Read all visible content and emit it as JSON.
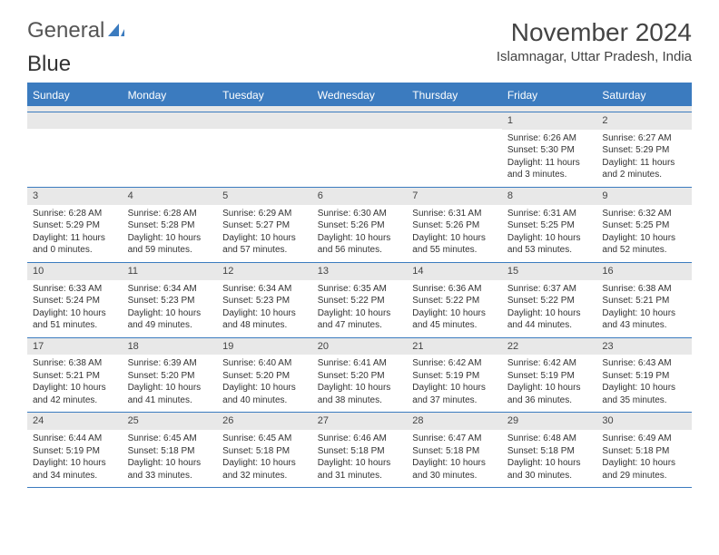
{
  "logo": {
    "text1": "General",
    "text2": "Blue"
  },
  "title": "November 2024",
  "location": "Islamnagar, Uttar Pradesh, India",
  "colors": {
    "brand_blue": "#3b7bbf",
    "header_gray": "#e8e8e8",
    "text": "#333333",
    "bg": "#ffffff"
  },
  "weekdays": [
    "Sunday",
    "Monday",
    "Tuesday",
    "Wednesday",
    "Thursday",
    "Friday",
    "Saturday"
  ],
  "weeks": [
    [
      null,
      null,
      null,
      null,
      null,
      {
        "n": "1",
        "sr": "Sunrise: 6:26 AM",
        "ss": "Sunset: 5:30 PM",
        "dl": "Daylight: 11 hours and 3 minutes."
      },
      {
        "n": "2",
        "sr": "Sunrise: 6:27 AM",
        "ss": "Sunset: 5:29 PM",
        "dl": "Daylight: 11 hours and 2 minutes."
      }
    ],
    [
      {
        "n": "3",
        "sr": "Sunrise: 6:28 AM",
        "ss": "Sunset: 5:29 PM",
        "dl": "Daylight: 11 hours and 0 minutes."
      },
      {
        "n": "4",
        "sr": "Sunrise: 6:28 AM",
        "ss": "Sunset: 5:28 PM",
        "dl": "Daylight: 10 hours and 59 minutes."
      },
      {
        "n": "5",
        "sr": "Sunrise: 6:29 AM",
        "ss": "Sunset: 5:27 PM",
        "dl": "Daylight: 10 hours and 57 minutes."
      },
      {
        "n": "6",
        "sr": "Sunrise: 6:30 AM",
        "ss": "Sunset: 5:26 PM",
        "dl": "Daylight: 10 hours and 56 minutes."
      },
      {
        "n": "7",
        "sr": "Sunrise: 6:31 AM",
        "ss": "Sunset: 5:26 PM",
        "dl": "Daylight: 10 hours and 55 minutes."
      },
      {
        "n": "8",
        "sr": "Sunrise: 6:31 AM",
        "ss": "Sunset: 5:25 PM",
        "dl": "Daylight: 10 hours and 53 minutes."
      },
      {
        "n": "9",
        "sr": "Sunrise: 6:32 AM",
        "ss": "Sunset: 5:25 PM",
        "dl": "Daylight: 10 hours and 52 minutes."
      }
    ],
    [
      {
        "n": "10",
        "sr": "Sunrise: 6:33 AM",
        "ss": "Sunset: 5:24 PM",
        "dl": "Daylight: 10 hours and 51 minutes."
      },
      {
        "n": "11",
        "sr": "Sunrise: 6:34 AM",
        "ss": "Sunset: 5:23 PM",
        "dl": "Daylight: 10 hours and 49 minutes."
      },
      {
        "n": "12",
        "sr": "Sunrise: 6:34 AM",
        "ss": "Sunset: 5:23 PM",
        "dl": "Daylight: 10 hours and 48 minutes."
      },
      {
        "n": "13",
        "sr": "Sunrise: 6:35 AM",
        "ss": "Sunset: 5:22 PM",
        "dl": "Daylight: 10 hours and 47 minutes."
      },
      {
        "n": "14",
        "sr": "Sunrise: 6:36 AM",
        "ss": "Sunset: 5:22 PM",
        "dl": "Daylight: 10 hours and 45 minutes."
      },
      {
        "n": "15",
        "sr": "Sunrise: 6:37 AM",
        "ss": "Sunset: 5:22 PM",
        "dl": "Daylight: 10 hours and 44 minutes."
      },
      {
        "n": "16",
        "sr": "Sunrise: 6:38 AM",
        "ss": "Sunset: 5:21 PM",
        "dl": "Daylight: 10 hours and 43 minutes."
      }
    ],
    [
      {
        "n": "17",
        "sr": "Sunrise: 6:38 AM",
        "ss": "Sunset: 5:21 PM",
        "dl": "Daylight: 10 hours and 42 minutes."
      },
      {
        "n": "18",
        "sr": "Sunrise: 6:39 AM",
        "ss": "Sunset: 5:20 PM",
        "dl": "Daylight: 10 hours and 41 minutes."
      },
      {
        "n": "19",
        "sr": "Sunrise: 6:40 AM",
        "ss": "Sunset: 5:20 PM",
        "dl": "Daylight: 10 hours and 40 minutes."
      },
      {
        "n": "20",
        "sr": "Sunrise: 6:41 AM",
        "ss": "Sunset: 5:20 PM",
        "dl": "Daylight: 10 hours and 38 minutes."
      },
      {
        "n": "21",
        "sr": "Sunrise: 6:42 AM",
        "ss": "Sunset: 5:19 PM",
        "dl": "Daylight: 10 hours and 37 minutes."
      },
      {
        "n": "22",
        "sr": "Sunrise: 6:42 AM",
        "ss": "Sunset: 5:19 PM",
        "dl": "Daylight: 10 hours and 36 minutes."
      },
      {
        "n": "23",
        "sr": "Sunrise: 6:43 AM",
        "ss": "Sunset: 5:19 PM",
        "dl": "Daylight: 10 hours and 35 minutes."
      }
    ],
    [
      {
        "n": "24",
        "sr": "Sunrise: 6:44 AM",
        "ss": "Sunset: 5:19 PM",
        "dl": "Daylight: 10 hours and 34 minutes."
      },
      {
        "n": "25",
        "sr": "Sunrise: 6:45 AM",
        "ss": "Sunset: 5:18 PM",
        "dl": "Daylight: 10 hours and 33 minutes."
      },
      {
        "n": "26",
        "sr": "Sunrise: 6:45 AM",
        "ss": "Sunset: 5:18 PM",
        "dl": "Daylight: 10 hours and 32 minutes."
      },
      {
        "n": "27",
        "sr": "Sunrise: 6:46 AM",
        "ss": "Sunset: 5:18 PM",
        "dl": "Daylight: 10 hours and 31 minutes."
      },
      {
        "n": "28",
        "sr": "Sunrise: 6:47 AM",
        "ss": "Sunset: 5:18 PM",
        "dl": "Daylight: 10 hours and 30 minutes."
      },
      {
        "n": "29",
        "sr": "Sunrise: 6:48 AM",
        "ss": "Sunset: 5:18 PM",
        "dl": "Daylight: 10 hours and 30 minutes."
      },
      {
        "n": "30",
        "sr": "Sunrise: 6:49 AM",
        "ss": "Sunset: 5:18 PM",
        "dl": "Daylight: 10 hours and 29 minutes."
      }
    ]
  ]
}
